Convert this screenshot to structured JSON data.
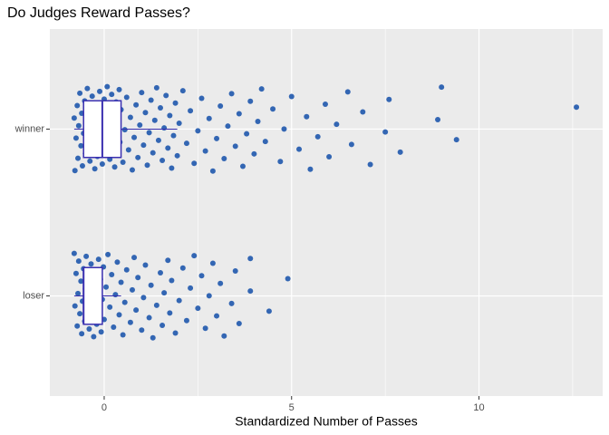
{
  "chart_data": {
    "type": "boxplot",
    "title": "Do Judges Reward Passes?",
    "x_label": "Standardized Number of Passes",
    "xlim": [
      -1.45,
      13.3
    ],
    "xticks": [
      0,
      5,
      10
    ],
    "xminor": [
      2.5,
      7.5,
      12.5
    ],
    "grid": true,
    "point_color": "#3366b3",
    "box_color": "#3a2fb0",
    "groups": [
      {
        "name": "loser",
        "box": {
          "whisker_low": -0.8,
          "q1": -0.55,
          "median": -0.55,
          "q3": -0.05,
          "whisker_high": 0.45
        },
        "points": [
          -0.8,
          -0.78,
          -0.75,
          -0.72,
          -0.7,
          -0.68,
          -0.65,
          -0.62,
          -0.6,
          -0.58,
          -0.55,
          -0.52,
          -0.5,
          -0.48,
          -0.45,
          -0.42,
          -0.4,
          -0.38,
          -0.35,
          -0.32,
          -0.3,
          -0.28,
          -0.25,
          -0.22,
          -0.2,
          -0.18,
          -0.15,
          -0.12,
          -0.1,
          -0.08,
          -0.05,
          -0.02,
          0,
          0.05,
          0.1,
          0.15,
          0.2,
          0.25,
          0.3,
          0.35,
          0.4,
          0.45,
          0.5,
          0.55,
          0.6,
          0.7,
          0.75,
          0.8,
          0.85,
          0.9,
          1.0,
          1.05,
          1.1,
          1.2,
          1.25,
          1.3,
          1.4,
          1.5,
          1.55,
          1.6,
          1.7,
          1.75,
          1.8,
          1.9,
          2.0,
          2.1,
          2.2,
          2.3,
          2.4,
          2.5,
          2.6,
          2.7,
          2.8,
          2.9,
          3.0,
          3.1,
          3.2,
          3.4,
          3.5,
          3.6,
          3.9,
          3.9,
          4.4,
          4.9
        ]
      },
      {
        "name": "winner",
        "box": {
          "whisker_low": -0.8,
          "q1": -0.55,
          "median": -0.05,
          "q3": 0.45,
          "whisker_high": 1.95
        },
        "points": [
          -0.8,
          -0.78,
          -0.75,
          -0.72,
          -0.7,
          -0.68,
          -0.65,
          -0.62,
          -0.6,
          -0.58,
          -0.55,
          -0.52,
          -0.5,
          -0.48,
          -0.45,
          -0.42,
          -0.4,
          -0.38,
          -0.35,
          -0.32,
          -0.3,
          -0.28,
          -0.25,
          -0.22,
          -0.2,
          -0.18,
          -0.15,
          -0.12,
          -0.1,
          -0.08,
          -0.05,
          -0.02,
          0,
          0.02,
          0.05,
          0.08,
          0.1,
          0.12,
          0.15,
          0.18,
          0.2,
          0.22,
          0.25,
          0.28,
          0.3,
          0.32,
          0.35,
          0.38,
          0.4,
          0.42,
          0.45,
          0.5,
          0.55,
          0.6,
          0.65,
          0.7,
          0.75,
          0.8,
          0.85,
          0.9,
          0.95,
          1.0,
          1.05,
          1.1,
          1.15,
          1.2,
          1.25,
          1.3,
          1.35,
          1.4,
          1.45,
          1.5,
          1.55,
          1.6,
          1.65,
          1.7,
          1.75,
          1.8,
          1.85,
          1.9,
          1.95,
          2.0,
          2.1,
          2.2,
          2.3,
          2.4,
          2.5,
          2.6,
          2.7,
          2.8,
          2.9,
          3.0,
          3.1,
          3.2,
          3.3,
          3.4,
          3.5,
          3.6,
          3.7,
          3.8,
          3.9,
          4.0,
          4.1,
          4.2,
          4.3,
          4.5,
          4.7,
          4.8,
          5.0,
          5.2,
          5.4,
          5.5,
          5.7,
          5.9,
          6.0,
          6.2,
          6.5,
          6.6,
          6.9,
          7.1,
          7.5,
          7.6,
          7.9,
          8.9,
          9.0,
          9.4,
          12.6
        ]
      }
    ]
  }
}
